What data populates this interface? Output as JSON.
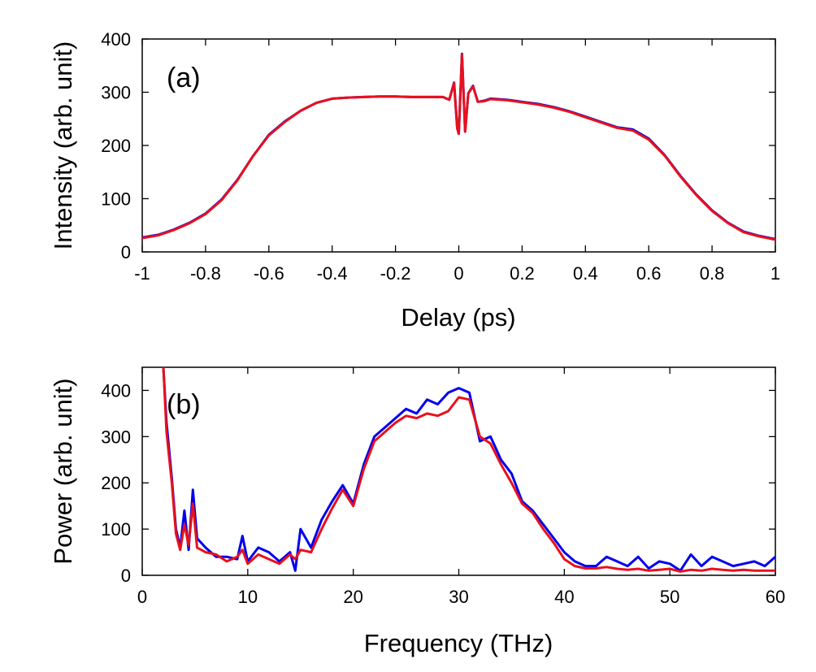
{
  "chart_data": [
    {
      "type": "line",
      "panel_label": "(a)",
      "xlabel": "Delay (ps)",
      "ylabel": "Intensity (arb. unit)",
      "xlim": [
        -1,
        1
      ],
      "ylim": [
        0,
        400
      ],
      "x_ticks": [
        -1,
        -0.8,
        -0.6,
        -0.4,
        -0.2,
        0,
        0.2,
        0.4,
        0.6,
        0.8,
        1
      ],
      "x_tick_labels": [
        "-1",
        "-0.8",
        "-0.6",
        "-0.4",
        "-0.2",
        "0",
        "0.2",
        "0.4",
        "0.6",
        "0.8",
        "1"
      ],
      "y_ticks": [
        0,
        100,
        200,
        300,
        400
      ],
      "y_tick_labels": [
        "0",
        "100",
        "200",
        "300",
        "400"
      ],
      "grid": false,
      "series": [
        {
          "name": "blue",
          "color": "#0000ee",
          "x": [
            -1,
            -0.95,
            -0.9,
            -0.85,
            -0.8,
            -0.75,
            -0.7,
            -0.65,
            -0.6,
            -0.55,
            -0.5,
            -0.45,
            -0.4,
            -0.35,
            -0.3,
            -0.25,
            -0.2,
            -0.15,
            -0.1,
            -0.05,
            -0.03,
            -0.015,
            -0.005,
            0.0,
            0.01,
            0.02,
            0.03,
            0.045,
            0.06,
            0.08,
            0.1,
            0.15,
            0.2,
            0.25,
            0.3,
            0.35,
            0.4,
            0.45,
            0.5,
            0.55,
            0.6,
            0.65,
            0.7,
            0.75,
            0.8,
            0.85,
            0.9,
            0.95,
            1
          ],
          "y": [
            27,
            32,
            42,
            55,
            72,
            98,
            135,
            180,
            220,
            245,
            265,
            280,
            288,
            290,
            291,
            292,
            292,
            291,
            291,
            291,
            286,
            318,
            232,
            222,
            372,
            226,
            298,
            312,
            282,
            284,
            288,
            286,
            282,
            278,
            272,
            264,
            254,
            244,
            234,
            230,
            213,
            182,
            143,
            108,
            78,
            55,
            38,
            30,
            24
          ]
        },
        {
          "name": "red",
          "color": "#e8101c",
          "x": [
            -1,
            -0.95,
            -0.9,
            -0.85,
            -0.8,
            -0.75,
            -0.7,
            -0.65,
            -0.6,
            -0.55,
            -0.5,
            -0.45,
            -0.4,
            -0.35,
            -0.3,
            -0.25,
            -0.2,
            -0.15,
            -0.1,
            -0.05,
            -0.03,
            -0.015,
            -0.005,
            0.0,
            0.01,
            0.02,
            0.03,
            0.045,
            0.06,
            0.08,
            0.1,
            0.15,
            0.2,
            0.25,
            0.3,
            0.35,
            0.4,
            0.45,
            0.5,
            0.55,
            0.6,
            0.65,
            0.7,
            0.75,
            0.8,
            0.85,
            0.9,
            0.95,
            1
          ],
          "y": [
            26,
            31,
            41,
            54,
            71,
            97,
            134,
            180,
            219,
            244,
            265,
            280,
            288,
            290,
            291,
            292,
            292,
            291,
            291,
            291,
            286,
            317,
            232,
            222,
            371,
            226,
            298,
            311,
            282,
            283,
            287,
            285,
            281,
            277,
            271,
            263,
            253,
            243,
            233,
            228,
            211,
            181,
            142,
            107,
            77,
            54,
            37,
            29,
            23
          ]
        }
      ]
    },
    {
      "type": "line",
      "panel_label": "(b)",
      "xlabel": "Frequency (THz)",
      "ylabel": "Power (arb. unit)",
      "xlim": [
        0,
        60
      ],
      "ylim": [
        0,
        450
      ],
      "x_ticks": [
        0,
        10,
        20,
        30,
        40,
        50,
        60
      ],
      "x_tick_labels": [
        "0",
        "10",
        "20",
        "30",
        "40",
        "50",
        "60"
      ],
      "y_ticks": [
        0,
        100,
        200,
        300,
        400
      ],
      "y_tick_labels": [
        "0",
        "100",
        "200",
        "300",
        "400"
      ],
      "grid": false,
      "series": [
        {
          "name": "blue",
          "color": "#0000ee",
          "x": [
            2,
            2.3,
            2.8,
            3.2,
            3.6,
            4.0,
            4.4,
            4.8,
            5.2,
            6,
            7,
            8,
            9,
            9.5,
            10,
            11,
            12,
            13,
            14,
            14.5,
            15,
            16,
            17,
            18,
            19,
            20,
            21,
            22,
            23,
            24,
            25,
            26,
            27,
            28,
            29,
            30,
            31,
            32,
            33,
            34,
            35,
            36,
            37,
            38,
            39,
            40,
            41,
            42,
            43,
            44,
            45,
            46,
            47,
            48,
            49,
            50,
            51,
            52,
            53,
            54,
            55,
            56,
            57,
            58,
            59,
            60
          ],
          "y": [
            450,
            330,
            210,
            100,
            60,
            140,
            55,
            185,
            80,
            60,
            40,
            40,
            35,
            85,
            30,
            60,
            50,
            30,
            50,
            10,
            100,
            60,
            120,
            160,
            195,
            155,
            240,
            300,
            320,
            340,
            360,
            350,
            380,
            370,
            395,
            405,
            395,
            290,
            300,
            250,
            220,
            160,
            140,
            110,
            80,
            50,
            30,
            20,
            20,
            40,
            30,
            20,
            40,
            15,
            30,
            25,
            10,
            45,
            20,
            40,
            30,
            20,
            25,
            30,
            20,
            40
          ]
        },
        {
          "name": "red",
          "color": "#e8101c",
          "x": [
            2,
            2.3,
            2.8,
            3.2,
            3.6,
            4.0,
            4.4,
            4.8,
            5.2,
            6,
            7,
            8,
            9,
            9.5,
            10,
            11,
            12,
            13,
            14,
            14.5,
            15,
            16,
            17,
            18,
            19,
            20,
            21,
            22,
            23,
            24,
            25,
            26,
            27,
            28,
            29,
            30,
            31,
            32,
            33,
            34,
            35,
            36,
            37,
            38,
            39,
            40,
            41,
            42,
            43,
            44,
            45,
            46,
            47,
            48,
            49,
            50,
            51,
            52,
            53,
            54,
            55,
            56,
            57,
            58,
            59,
            60
          ],
          "y": [
            450,
            310,
            200,
            90,
            55,
            110,
            65,
            155,
            60,
            50,
            45,
            30,
            40,
            55,
            25,
            45,
            35,
            25,
            45,
            35,
            55,
            50,
            100,
            145,
            185,
            150,
            230,
            290,
            310,
            330,
            345,
            340,
            350,
            345,
            355,
            385,
            380,
            300,
            285,
            240,
            200,
            155,
            135,
            100,
            70,
            35,
            20,
            15,
            15,
            18,
            14,
            12,
            14,
            10,
            12,
            14,
            8,
            12,
            10,
            14,
            12,
            10,
            12,
            10,
            10,
            10
          ]
        }
      ]
    }
  ]
}
